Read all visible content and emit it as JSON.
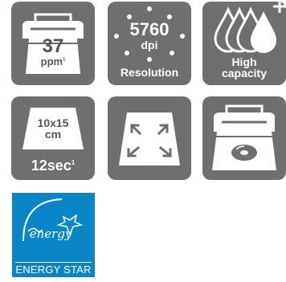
{
  "speed": {
    "value": "37",
    "unit": "ppm",
    "note": "1"
  },
  "resolution": {
    "value": "5760",
    "unit": "dpi",
    "label": "Resolution"
  },
  "ink": {
    "line1": "High",
    "line2": "capacity"
  },
  "photo": {
    "size_line1": "10x15",
    "size_line2": "cm",
    "time": "12sec",
    "note": "1"
  },
  "borderless": {
    "icon": "borderless-expand-icon"
  },
  "cd_print": {
    "icon": "cd-printing-icon"
  },
  "energy_star": {
    "label": "ENERGY STAR",
    "script": "energy"
  },
  "colors": {
    "tile": "#6f6f6f",
    "energy_star_blue": "#0a86c8"
  }
}
